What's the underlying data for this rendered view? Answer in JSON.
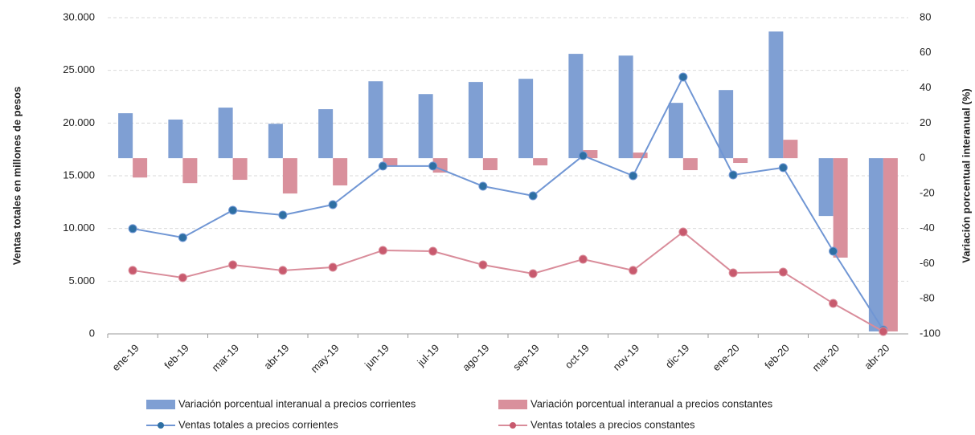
{
  "chart_data": {
    "type": "combo",
    "categories": [
      "ene-19",
      "feb-19",
      "mar-19",
      "abr-19",
      "may-19",
      "jun-19",
      "jul-19",
      "ago-19",
      "sep-19",
      "oct-19",
      "nov-19",
      "dic-19",
      "ene-20",
      "feb-20",
      "mar-20",
      "abr-20"
    ],
    "ylabel": "Ventas totales en millones de pesos",
    "y2label": "Variación porcentual interanual (%)",
    "ylim": [
      0,
      30000
    ],
    "yticks": [
      0,
      {
        "value": 5000,
        "label": "5.000"
      },
      {
        "value": 10000,
        "label": "10.000"
      },
      {
        "value": 15000,
        "label": "15.000"
      },
      {
        "value": 20000,
        "label": "20.000"
      },
      {
        "value": 25000,
        "label": "25.000"
      },
      {
        "value": 30000,
        "label": "30.000"
      }
    ],
    "y2lim": [
      -100,
      80
    ],
    "y2ticks": [
      -100,
      -80,
      -60,
      -40,
      -20,
      0,
      20,
      40,
      60,
      80
    ],
    "series": [
      {
        "name": "Variación porcentual interanual a precios corrientes",
        "type": "bar",
        "axis": "y2",
        "color": "#7f9fd3",
        "values": [
          25.6,
          22,
          28.8,
          19.6,
          27.9,
          43.8,
          36.5,
          43.4,
          45.2,
          59.4,
          58.4,
          31.5,
          38.8,
          72.1,
          -32.9,
          -98.6
        ]
      },
      {
        "name": "Variación porcentual interanual a precios constantes",
        "type": "bar",
        "axis": "y2",
        "color": "#d9909c",
        "values": [
          -11,
          -14.2,
          -12.3,
          -20.1,
          -15.5,
          -4.1,
          -8.2,
          -6.8,
          -4.1,
          4.6,
          3.2,
          -6.8,
          -2.7,
          10.5,
          -56.6,
          -98.6
        ]
      },
      {
        "name": "Ventas totales a precios corrientes",
        "type": "line",
        "color": "#7096d4",
        "marker_color": "#2e6fa3",
        "values": [
          9980,
          9140,
          11730,
          11270,
          12260,
          15920,
          15920,
          14010,
          13100,
          16910,
          15000,
          24370,
          15080,
          15770,
          7840,
          380
        ]
      },
      {
        "name": "Ventas totales a precios constantes",
        "type": "line",
        "color": "#d98c9a",
        "marker_color": "#c85a6e",
        "values": [
          6020,
          5330,
          6550,
          6020,
          6320,
          7920,
          7840,
          6550,
          5710,
          7080,
          6020,
          9670,
          5790,
          5860,
          2890,
          230
        ]
      }
    ]
  }
}
